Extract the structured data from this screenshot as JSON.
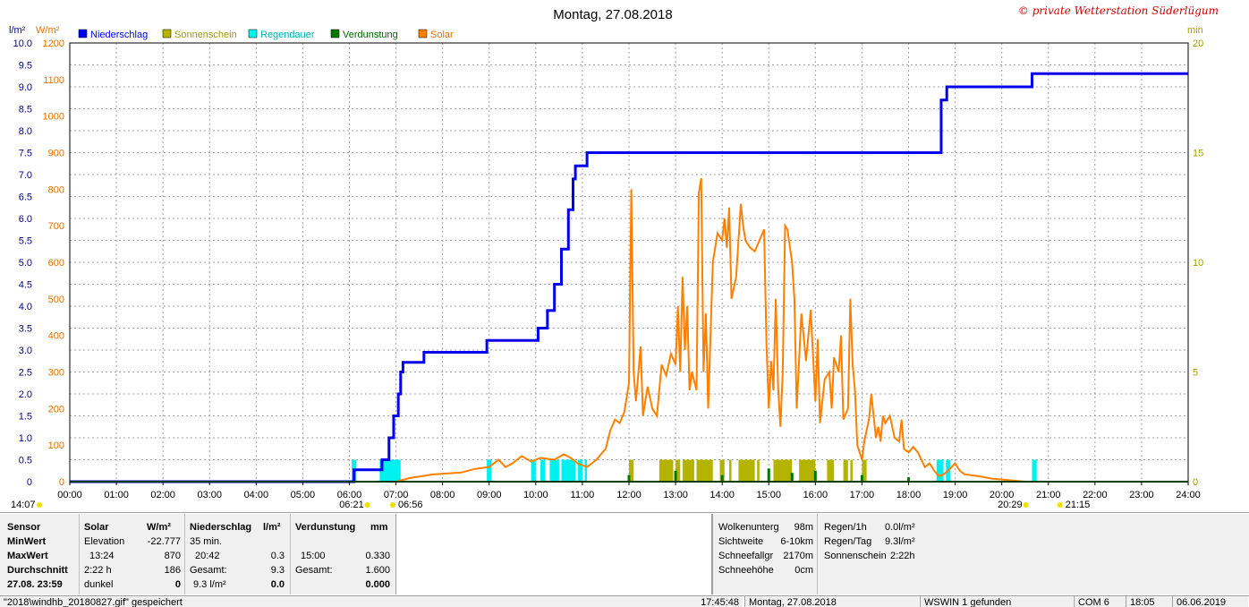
{
  "header": {
    "title": "Montag, 27.08.2018",
    "credit": "© private Wetterstation Süderlügum"
  },
  "chart_data": {
    "type": "line",
    "x_ticks": [
      "00:00",
      "01:00",
      "02:00",
      "03:00",
      "04:00",
      "05:00",
      "06:00",
      "07:00",
      "08:00",
      "09:00",
      "10:00",
      "11:00",
      "12:00",
      "13:00",
      "14:00",
      "15:00",
      "16:00",
      "17:00",
      "18:00",
      "19:00",
      "20:00",
      "21:00",
      "22:00",
      "23:00",
      "24:00"
    ],
    "x_range_hours": [
      0,
      24
    ],
    "left_axis_1": {
      "unit": "l/m²",
      "range": [
        0,
        10.0
      ],
      "ticks": [
        "0",
        "0.5",
        "1.0",
        "1.5",
        "2.0",
        "2.5",
        "3.0",
        "3.5",
        "4.0",
        "4.5",
        "5.0",
        "5.5",
        "6.0",
        "6.5",
        "7.0",
        "7.5",
        "8.0",
        "8.5",
        "9.0",
        "9.5",
        "10.0"
      ]
    },
    "left_axis_2": {
      "unit": "W/m²",
      "range": [
        0,
        1200
      ],
      "ticks": [
        "0",
        "100",
        "200",
        "300",
        "400",
        "500",
        "600",
        "700",
        "800",
        "900",
        "1000",
        "1100",
        "1200"
      ]
    },
    "right_axis": {
      "unit": "min",
      "range": [
        0,
        20
      ],
      "ticks": [
        "0",
        "5",
        "10",
        "15",
        "20"
      ]
    },
    "legend": [
      {
        "name": "Niederschlag",
        "color": "#0000ee",
        "text_color": "#0000ee"
      },
      {
        "name": "Sonnenschein",
        "color": "#b4b400",
        "text_color": "#a0a000"
      },
      {
        "name": "Regendauer",
        "color": "#00f0f0",
        "text_color": "#00b0b0"
      },
      {
        "name": "Verdunstung",
        "color": "#007800",
        "text_color": "#006400"
      },
      {
        "name": "Solar",
        "color": "#ff8000",
        "text_color": "#e07000"
      }
    ],
    "colors": {
      "precip": "#0000ee",
      "solar": "#ff8000",
      "sunshine": "#b4b400",
      "rain_duration": "#00f0f0",
      "evaporation": "#007800",
      "axis_left": "#00008b",
      "axis_solar": "#ff8000",
      "axis_right": "#a0a000"
    },
    "sun_events": [
      {
        "label": "14:07",
        "hour": 0,
        "row": 1
      },
      {
        "label": "06:21",
        "hour": 6.35,
        "row": 1
      },
      {
        "label": "06:56",
        "hour": 6.93,
        "row": 1
      },
      {
        "label": "20:29",
        "hour": 20.48,
        "row": 1
      },
      {
        "label": "21:15",
        "hour": 21.25,
        "row": 1
      }
    ],
    "precip_series": [
      [
        0,
        0
      ],
      [
        6.08,
        0
      ],
      [
        6.1,
        0.27
      ],
      [
        6.65,
        0.27
      ],
      [
        6.7,
        0.5
      ],
      [
        6.85,
        1.0
      ],
      [
        6.95,
        1.5
      ],
      [
        7.05,
        2.0
      ],
      [
        7.1,
        2.5
      ],
      [
        7.15,
        2.72
      ],
      [
        7.55,
        2.72
      ],
      [
        7.6,
        2.95
      ],
      [
        8.9,
        2.95
      ],
      [
        8.95,
        3.22
      ],
      [
        10.0,
        3.22
      ],
      [
        10.05,
        3.5
      ],
      [
        10.2,
        3.5
      ],
      [
        10.25,
        3.9
      ],
      [
        10.4,
        4.5
      ],
      [
        10.55,
        5.3
      ],
      [
        10.7,
        6.2
      ],
      [
        10.8,
        6.9
      ],
      [
        10.85,
        7.2
      ],
      [
        11.05,
        7.2
      ],
      [
        11.1,
        7.5
      ],
      [
        18.65,
        7.5
      ],
      [
        18.7,
        8.7
      ],
      [
        18.8,
        8.7
      ],
      [
        18.82,
        9.0
      ],
      [
        20.6,
        9.0
      ],
      [
        20.65,
        9.3
      ],
      [
        24,
        9.3
      ]
    ],
    "solar_series": [
      [
        0,
        0
      ],
      [
        7.0,
        0
      ],
      [
        7.3,
        10
      ],
      [
        7.8,
        20
      ],
      [
        8.4,
        25
      ],
      [
        8.7,
        35
      ],
      [
        9.0,
        40
      ],
      [
        9.2,
        60
      ],
      [
        9.35,
        40
      ],
      [
        9.5,
        50
      ],
      [
        9.7,
        70
      ],
      [
        9.9,
        55
      ],
      [
        10.1,
        65
      ],
      [
        10.4,
        60
      ],
      [
        10.6,
        75
      ],
      [
        10.75,
        65
      ],
      [
        10.9,
        50
      ],
      [
        11.1,
        40
      ],
      [
        11.3,
        60
      ],
      [
        11.5,
        90
      ],
      [
        11.6,
        140
      ],
      [
        11.7,
        170
      ],
      [
        11.8,
        160
      ],
      [
        11.9,
        190
      ],
      [
        12.0,
        270
      ],
      [
        12.05,
        800
      ],
      [
        12.1,
        300
      ],
      [
        12.15,
        220
      ],
      [
        12.25,
        370
      ],
      [
        12.3,
        180
      ],
      [
        12.4,
        260
      ],
      [
        12.5,
        200
      ],
      [
        12.6,
        180
      ],
      [
        12.7,
        320
      ],
      [
        12.8,
        290
      ],
      [
        12.9,
        350
      ],
      [
        13.0,
        320
      ],
      [
        13.05,
        480
      ],
      [
        13.1,
        300
      ],
      [
        13.15,
        560
      ],
      [
        13.2,
        360
      ],
      [
        13.25,
        480
      ],
      [
        13.3,
        250
      ],
      [
        13.35,
        300
      ],
      [
        13.45,
        250
      ],
      [
        13.5,
        790
      ],
      [
        13.55,
        830
      ],
      [
        13.6,
        300
      ],
      [
        13.65,
        460
      ],
      [
        13.7,
        200
      ],
      [
        13.8,
        600
      ],
      [
        13.9,
        680
      ],
      [
        14.0,
        660
      ],
      [
        14.05,
        720
      ],
      [
        14.1,
        640
      ],
      [
        14.15,
        750
      ],
      [
        14.2,
        500
      ],
      [
        14.3,
        560
      ],
      [
        14.4,
        760
      ],
      [
        14.45,
        700
      ],
      [
        14.5,
        660
      ],
      [
        14.6,
        640
      ],
      [
        14.7,
        630
      ],
      [
        14.8,
        660
      ],
      [
        14.9,
        690
      ],
      [
        14.95,
        380
      ],
      [
        15.0,
        200
      ],
      [
        15.05,
        330
      ],
      [
        15.1,
        250
      ],
      [
        15.15,
        500
      ],
      [
        15.2,
        260
      ],
      [
        15.25,
        150
      ],
      [
        15.3,
        300
      ],
      [
        15.35,
        700
      ],
      [
        15.4,
        690
      ],
      [
        15.5,
        600
      ],
      [
        15.55,
        500
      ],
      [
        15.6,
        200
      ],
      [
        15.7,
        460
      ],
      [
        15.8,
        330
      ],
      [
        15.9,
        470
      ],
      [
        16.0,
        220
      ],
      [
        16.05,
        390
      ],
      [
        16.1,
        160
      ],
      [
        16.2,
        280
      ],
      [
        16.3,
        300
      ],
      [
        16.35,
        200
      ],
      [
        16.4,
        340
      ],
      [
        16.5,
        300
      ],
      [
        16.55,
        400
      ],
      [
        16.6,
        170
      ],
      [
        16.7,
        200
      ],
      [
        16.75,
        500
      ],
      [
        16.8,
        320
      ],
      [
        16.85,
        250
      ],
      [
        16.9,
        100
      ],
      [
        17.0,
        60
      ],
      [
        17.05,
        110
      ],
      [
        17.15,
        170
      ],
      [
        17.2,
        240
      ],
      [
        17.3,
        120
      ],
      [
        17.35,
        150
      ],
      [
        17.4,
        110
      ],
      [
        17.45,
        180
      ],
      [
        17.5,
        160
      ],
      [
        17.6,
        180
      ],
      [
        17.7,
        120
      ],
      [
        17.8,
        110
      ],
      [
        17.85,
        170
      ],
      [
        17.9,
        90
      ],
      [
        18.0,
        80
      ],
      [
        18.1,
        95
      ],
      [
        18.2,
        80
      ],
      [
        18.35,
        40
      ],
      [
        18.45,
        50
      ],
      [
        18.55,
        30
      ],
      [
        18.65,
        15
      ],
      [
        18.75,
        20
      ],
      [
        18.85,
        30
      ],
      [
        19.0,
        50
      ],
      [
        19.1,
        30
      ],
      [
        19.2,
        20
      ],
      [
        19.5,
        15
      ],
      [
        19.8,
        8
      ],
      [
        20.1,
        5
      ],
      [
        20.5,
        0
      ],
      [
        24,
        0
      ]
    ],
    "sunshine_bars": [
      [
        12.0,
        12.1
      ],
      [
        12.65,
        12.95
      ],
      [
        13.0,
        13.1
      ],
      [
        13.15,
        13.4
      ],
      [
        13.45,
        13.8
      ],
      [
        13.95,
        14.05
      ],
      [
        14.15,
        14.2
      ],
      [
        14.35,
        14.7
      ],
      [
        14.75,
        14.8
      ],
      [
        15.1,
        15.5
      ],
      [
        15.65,
        16.0
      ],
      [
        16.25,
        16.4
      ],
      [
        16.6,
        16.7
      ],
      [
        16.75,
        16.8
      ],
      [
        17.0,
        17.1
      ]
    ],
    "sunshine_height_min": 1.0,
    "rain_bars": [
      [
        6.05,
        6.15
      ],
      [
        6.65,
        7.1
      ],
      [
        8.95,
        9.05
      ],
      [
        9.9,
        10.0
      ],
      [
        10.1,
        10.2
      ],
      [
        10.3,
        10.5
      ],
      [
        10.55,
        10.85
      ],
      [
        10.9,
        11.0
      ],
      [
        11.05,
        11.1
      ],
      [
        18.6,
        18.75
      ],
      [
        18.8,
        18.9
      ],
      [
        20.65,
        20.75
      ]
    ],
    "rain_height_min": 1.0,
    "evap_ticks": [
      [
        12.0,
        0.3
      ],
      [
        13.0,
        0.5
      ],
      [
        14.0,
        0.3
      ],
      [
        15.0,
        0.6
      ],
      [
        15.5,
        0.4
      ],
      [
        16.0,
        0.5
      ],
      [
        17.0,
        0.3
      ],
      [
        18.0,
        0.2
      ]
    ]
  },
  "stats": {
    "sensor": {
      "labels": [
        "Sensor",
        "MinWert",
        "MaxWert",
        "Durchschnitt",
        "27.08. 23:59"
      ]
    },
    "solar": {
      "header": "Solar",
      "unit": "W/m²",
      "rows": [
        [
          "Elevation",
          "-22.777"
        ],
        [
          "13:24",
          "870"
        ],
        [
          "2:22 h",
          "186"
        ],
        [
          "dunkel",
          "0"
        ]
      ]
    },
    "precip": {
      "header": "Niederschlag",
      "unit": "l/m²",
      "rows": [
        [
          "35 min.",
          ""
        ],
        [
          "20:42",
          "0.3"
        ],
        [
          "Gesamt:",
          "9.3"
        ],
        [
          "9.3 l/m²",
          "0.0"
        ]
      ]
    },
    "evap": {
      "header": "Verdunstung",
      "unit": "mm",
      "rows": [
        [
          "",
          ""
        ],
        [
          "15:00",
          "0.330"
        ],
        [
          "Gesamt:",
          "1.600"
        ],
        [
          "",
          "0.000"
        ]
      ]
    },
    "cloud": {
      "rows": [
        [
          "Wolkenunterg",
          "98m"
        ],
        [
          "Sichtweite",
          "6-10km"
        ],
        [
          "Schneefallgr",
          "2170m"
        ],
        [
          "Schneehöhe",
          "0cm"
        ]
      ]
    },
    "rain": {
      "rows": [
        [
          "Regen/1h",
          "0.0l/m²"
        ],
        [
          "Regen/Tag",
          "9.3l/m²"
        ],
        [
          "Sonnenschein",
          "2:22h"
        ]
      ]
    }
  },
  "statusbar": {
    "file": "\"2018\\windhb_20180827.gif\" gespeichert",
    "time": "17:45:48",
    "date": "Montag, 27.08.2018",
    "wswin": "WSWIN 1 gefunden",
    "com": "COM 6",
    "clock": "18:05",
    "today": "06.06.2019"
  }
}
